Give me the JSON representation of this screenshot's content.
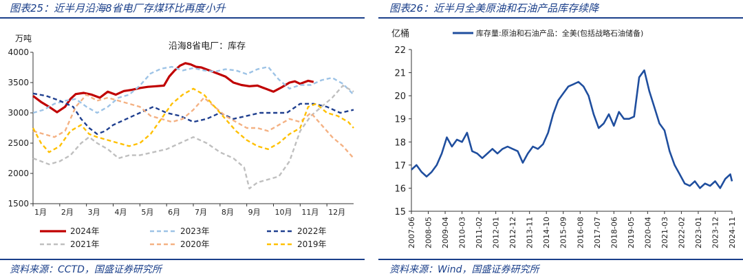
{
  "left": {
    "figure_title": "图表25：近半月沿海8省电厂存煤环比再度小升",
    "source": "资料来源：CCTD，国盛证券研究所"
  },
  "right": {
    "figure_title": "图表26：近半月全美原油和石油产品库存续降",
    "source": "资料来源：Wind，国盛证券研究所"
  },
  "chart_data": [
    {
      "type": "line",
      "title": "沿海8省电厂：库存",
      "ylabel": "万吨",
      "ylim": [
        1500,
        4000
      ],
      "yticks": [
        1500,
        2000,
        2500,
        3000,
        3500,
        4000
      ],
      "xlim": [
        1,
        13
      ],
      "categories": [
        "1月",
        "2月",
        "3月",
        "4月",
        "5月",
        "6月",
        "7月",
        "8月",
        "9月",
        "10月",
        "11月",
        "12月"
      ],
      "grid": false,
      "legend": "bottom",
      "series": [
        {
          "name": "2024年",
          "color": "#c00000",
          "style": "solid",
          "x": [
            1,
            1.3,
            1.6,
            1.9,
            2.2,
            2.4,
            2.6,
            2.9,
            3.2,
            3.5,
            3.8,
            4.1,
            4.4,
            4.7,
            5.0,
            5.3,
            5.6,
            5.9,
            6.1,
            6.3,
            6.5,
            6.7,
            6.9,
            7.1,
            7.3,
            7.6,
            7.9,
            8.2,
            8.5,
            8.8,
            9.1,
            9.4,
            9.7,
            10.0,
            10.3,
            10.6,
            10.8,
            11.0,
            11.3,
            11.5
          ],
          "y": [
            3280,
            3180,
            3100,
            3010,
            3100,
            3230,
            3310,
            3330,
            3300,
            3250,
            3350,
            3300,
            3360,
            3380,
            3410,
            3430,
            3440,
            3450,
            3600,
            3700,
            3780,
            3820,
            3800,
            3760,
            3750,
            3700,
            3650,
            3600,
            3500,
            3460,
            3440,
            3450,
            3400,
            3350,
            3420,
            3500,
            3520,
            3480,
            3530,
            3510
          ]
        },
        {
          "name": "2023年",
          "color": "#9dc3e6",
          "style": "dash",
          "x": [
            1,
            1.4,
            1.8,
            2.2,
            2.6,
            3.0,
            3.4,
            3.8,
            4.2,
            4.6,
            5.0,
            5.4,
            5.8,
            6.2,
            6.6,
            7.0,
            7.4,
            7.8,
            8.2,
            8.6,
            9.0,
            9.4,
            9.8,
            10.2,
            10.6,
            11.0,
            11.4,
            11.8,
            12.2,
            12.6,
            13.0
          ],
          "y": [
            3000,
            3050,
            3150,
            3200,
            3230,
            3100,
            3000,
            3100,
            3250,
            3300,
            3450,
            3650,
            3730,
            3760,
            3700,
            3740,
            3700,
            3680,
            3720,
            3700,
            3640,
            3720,
            3760,
            3550,
            3400,
            3460,
            3460,
            3540,
            3580,
            3480,
            3300
          ]
        },
        {
          "name": "2022年",
          "color": "#1f3f8f",
          "style": "dash",
          "x": [
            1,
            1.5,
            2.0,
            2.5,
            2.8,
            3.1,
            3.4,
            3.7,
            4.0,
            4.5,
            5.0,
            5.5,
            6.0,
            6.5,
            7.0,
            7.5,
            8.0,
            8.5,
            9.0,
            9.5,
            10.0,
            10.5,
            11.0,
            11.5,
            12.0,
            12.5,
            13.0
          ],
          "y": [
            3320,
            3280,
            3200,
            3100,
            2900,
            2750,
            2650,
            2700,
            2800,
            2900,
            3000,
            3100,
            3000,
            2950,
            2850,
            2900,
            3000,
            2900,
            2950,
            3000,
            3000,
            3000,
            3150,
            3150,
            3100,
            3000,
            3050
          ]
        },
        {
          "name": "2021年",
          "color": "#bfbfbf",
          "style": "dash",
          "x": [
            1,
            1.3,
            1.6,
            2.0,
            2.4,
            2.8,
            3.1,
            3.4,
            3.8,
            4.2,
            4.6,
            5.0,
            5.5,
            6.0,
            6.5,
            7.0,
            7.5,
            8.0,
            8.5,
            8.9,
            9.1,
            9.4,
            9.8,
            10.2,
            10.6,
            11.0,
            11.4,
            11.8,
            12.2,
            12.6,
            13.0
          ],
          "y": [
            2250,
            2200,
            2150,
            2200,
            2300,
            2500,
            2600,
            2500,
            2400,
            2250,
            2300,
            2300,
            2350,
            2400,
            2500,
            2600,
            2500,
            2350,
            2250,
            2100,
            1750,
            1850,
            1900,
            1950,
            2200,
            2700,
            2950,
            3100,
            3250,
            3450,
            3350
          ]
        },
        {
          "name": "2020年",
          "color": "#f4b183",
          "style": "dash",
          "x": [
            1,
            1.4,
            1.8,
            2.2,
            2.6,
            3.0,
            3.4,
            3.8,
            4.2,
            4.6,
            5.0,
            5.4,
            5.8,
            6.2,
            6.6,
            7.0,
            7.4,
            7.8,
            8.2,
            8.6,
            9.0,
            9.4,
            9.8,
            10.2,
            10.6,
            11.0,
            11.4,
            11.8,
            12.2,
            12.6,
            13.0
          ],
          "y": [
            2700,
            2650,
            2600,
            2700,
            3100,
            3300,
            3200,
            3250,
            3200,
            3150,
            3100,
            2950,
            2900,
            2850,
            2900,
            3050,
            3250,
            3100,
            2950,
            2850,
            2750,
            2750,
            2700,
            2800,
            2900,
            2850,
            3000,
            2800,
            2600,
            2450,
            2250
          ]
        },
        {
          "name": "2019年",
          "color": "#ffc000",
          "style": "dash",
          "x": [
            1,
            1.3,
            1.6,
            2.0,
            2.4,
            2.8,
            3.1,
            3.4,
            3.8,
            4.2,
            4.6,
            5.0,
            5.4,
            5.8,
            6.2,
            6.6,
            7.0,
            7.4,
            7.8,
            8.2,
            8.6,
            9.0,
            9.4,
            9.8,
            10.2,
            10.6,
            11.0,
            11.3,
            11.6,
            12.0,
            12.4,
            12.8,
            13.0
          ],
          "y": [
            2750,
            2500,
            2350,
            2450,
            2700,
            2800,
            2650,
            2600,
            2550,
            2500,
            2450,
            2500,
            2650,
            2900,
            3150,
            3300,
            3400,
            3300,
            3100,
            2900,
            2700,
            2550,
            2450,
            2400,
            2500,
            2650,
            2750,
            3100,
            3150,
            3000,
            2950,
            2850,
            2750
          ]
        }
      ]
    },
    {
      "type": "line",
      "ylabel": "亿桶",
      "ylim": [
        15,
        22
      ],
      "yticks": [
        15,
        16,
        17,
        18,
        19,
        20,
        21,
        22
      ],
      "categories": [
        "2007-06",
        "2008-05",
        "2009-04",
        "2010-03",
        "2011-02",
        "2012-01",
        "2012-12",
        "2013-11",
        "2014-10",
        "2015-09",
        "2016-08",
        "2017-07",
        "2018-06",
        "2019-05",
        "2020-04",
        "2021-03",
        "2022-02",
        "2023-01",
        "2023-12",
        "2024-11"
      ],
      "grid": false,
      "legend": "top",
      "series": [
        {
          "name": "库存量:原油和石油产品：全美(包括战略石油储备)",
          "color": "#1f4e9e",
          "style": "solid",
          "x": [
            0,
            0.3,
            0.6,
            0.9,
            1.2,
            1.5,
            1.8,
            2.1,
            2.4,
            2.7,
            3.0,
            3.3,
            3.6,
            3.9,
            4.2,
            4.5,
            4.8,
            5.1,
            5.4,
            5.7,
            6.0,
            6.3,
            6.6,
            6.9,
            7.2,
            7.5,
            7.8,
            8.1,
            8.4,
            8.7,
            9.0,
            9.3,
            9.6,
            9.9,
            10.2,
            10.5,
            10.8,
            11.1,
            11.4,
            11.7,
            12.0,
            12.3,
            12.6,
            12.9,
            13.2,
            13.5,
            13.8,
            14.1,
            14.4,
            14.7,
            15.0,
            15.3,
            15.6,
            15.9,
            16.2,
            16.5,
            16.8,
            17.1,
            17.4,
            17.7,
            18.0,
            18.3,
            18.6,
            18.9,
            19.0
          ],
          "y": [
            16.8,
            17.0,
            16.7,
            16.5,
            16.7,
            17.0,
            17.5,
            18.2,
            17.8,
            18.1,
            18.0,
            18.4,
            17.6,
            17.5,
            17.3,
            17.5,
            17.7,
            17.5,
            17.7,
            17.8,
            17.7,
            17.6,
            17.1,
            17.5,
            17.8,
            17.7,
            17.9,
            18.4,
            19.2,
            19.8,
            20.1,
            20.4,
            20.5,
            20.6,
            20.4,
            20.0,
            19.2,
            18.6,
            18.8,
            19.2,
            18.7,
            19.3,
            19.0,
            19.0,
            19.1,
            20.8,
            21.1,
            20.2,
            19.5,
            18.8,
            18.5,
            17.6,
            17.0,
            16.6,
            16.2,
            16.1,
            16.3,
            16.0,
            16.2,
            16.1,
            16.3,
            16.0,
            16.4,
            16.6,
            16.3
          ]
        }
      ]
    }
  ]
}
